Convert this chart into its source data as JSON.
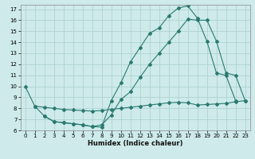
{
  "xlabel": "Humidex (Indice chaleur)",
  "bg_color": "#ceeaea",
  "grid_color": "#aacece",
  "line_color": "#2a7a70",
  "xlim": [
    -0.5,
    23.5
  ],
  "ylim": [
    6,
    17.4
  ],
  "xticks": [
    0,
    1,
    2,
    3,
    4,
    5,
    6,
    7,
    8,
    9,
    10,
    11,
    12,
    13,
    14,
    15,
    16,
    17,
    18,
    19,
    20,
    21,
    22,
    23
  ],
  "yticks": [
    6,
    7,
    8,
    9,
    10,
    11,
    12,
    13,
    14,
    15,
    16,
    17
  ],
  "series": [
    {
      "x": [
        0,
        1,
        2,
        3,
        4,
        5,
        6,
        7,
        8,
        9,
        10,
        11,
        12,
        13,
        14,
        15,
        16,
        17,
        18,
        19,
        20,
        21,
        22
      ],
      "y": [
        10,
        8.2,
        7.3,
        6.8,
        6.7,
        6.6,
        6.5,
        6.35,
        6.3,
        8.7,
        10.3,
        12.2,
        13.5,
        14.8,
        15.3,
        16.4,
        17.1,
        17.3,
        16.2,
        14.1,
        11.2,
        11.0,
        8.7
      ]
    },
    {
      "x": [
        2,
        3,
        4,
        5,
        6,
        7,
        8,
        9,
        10,
        11,
        12,
        13,
        14,
        15,
        16,
        17,
        18,
        19,
        20,
        21,
        22,
        23
      ],
      "y": [
        7.3,
        6.8,
        6.7,
        6.6,
        6.5,
        6.35,
        6.5,
        7.4,
        8.8,
        9.5,
        10.8,
        12.0,
        13.0,
        14.0,
        15.0,
        16.1,
        16.0,
        16.0,
        14.1,
        11.2,
        11.0,
        8.7
      ]
    },
    {
      "x": [
        1,
        2,
        3,
        4,
        5,
        6,
        7,
        8,
        9,
        10,
        11,
        12,
        13,
        14,
        15,
        16,
        17,
        18,
        19,
        20,
        21,
        22,
        23
      ],
      "y": [
        8.2,
        8.1,
        8.0,
        7.9,
        7.85,
        7.8,
        7.75,
        7.8,
        7.9,
        8.0,
        8.1,
        8.2,
        8.3,
        8.4,
        8.5,
        8.55,
        8.5,
        8.3,
        8.35,
        8.4,
        8.45,
        8.6,
        8.7
      ]
    }
  ]
}
